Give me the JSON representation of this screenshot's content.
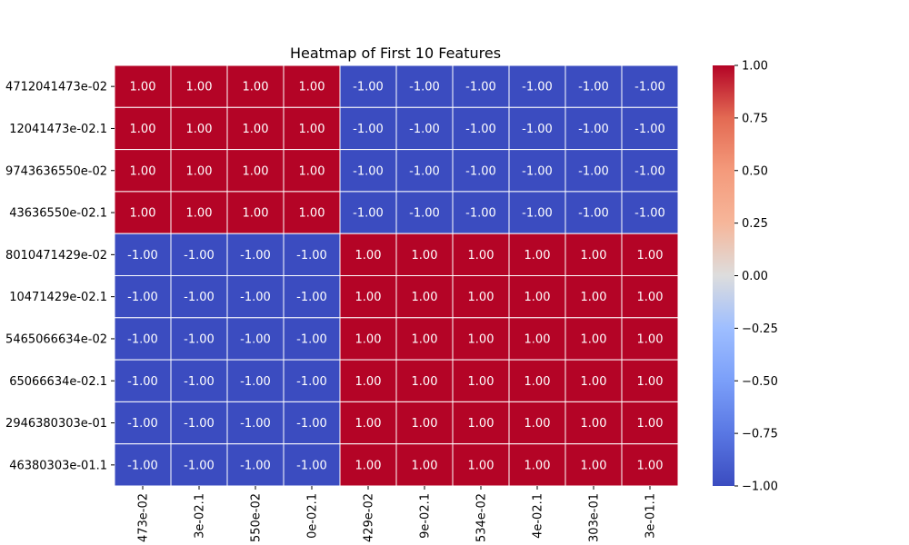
{
  "chart_data": {
    "type": "heatmap",
    "title": "Heatmap of First 10 Features",
    "row_labels": [
      "4712041473e-02",
      "12041473e-02.1",
      "9743636550e-02",
      "43636550e-02.1",
      "8010471429e-02",
      "10471429e-02.1",
      "5465066634e-02",
      "65066634e-02.1",
      "2946380303e-01",
      "46380303e-01.1"
    ],
    "column_labels": [
      "473e-02",
      "3e-02.1",
      "550e-02",
      "0e-02.1",
      "429e-02",
      "9e-02.1",
      "534e-02",
      "4e-02.1",
      "303e-01",
      "3e-01.1"
    ],
    "values": [
      [
        1,
        1,
        1,
        1,
        -1,
        -1,
        -1,
        -1,
        -1,
        -1
      ],
      [
        1,
        1,
        1,
        1,
        -1,
        -1,
        -1,
        -1,
        -1,
        -1
      ],
      [
        1,
        1,
        1,
        1,
        -1,
        -1,
        -1,
        -1,
        -1,
        -1
      ],
      [
        1,
        1,
        1,
        1,
        -1,
        -1,
        -1,
        -1,
        -1,
        -1
      ],
      [
        -1,
        -1,
        -1,
        -1,
        1,
        1,
        1,
        1,
        1,
        1
      ],
      [
        -1,
        -1,
        -1,
        -1,
        1,
        1,
        1,
        1,
        1,
        1
      ],
      [
        -1,
        -1,
        -1,
        -1,
        1,
        1,
        1,
        1,
        1,
        1
      ],
      [
        -1,
        -1,
        -1,
        -1,
        1,
        1,
        1,
        1,
        1,
        1
      ],
      [
        -1,
        -1,
        -1,
        -1,
        1,
        1,
        1,
        1,
        1,
        1
      ],
      [
        -1,
        -1,
        -1,
        -1,
        1,
        1,
        1,
        1,
        1,
        1
      ]
    ],
    "value_format": "0.00",
    "colormap": "coolwarm",
    "colorbar": {
      "min": -1.0,
      "max": 1.0,
      "ticks": [
        "−1.00",
        "−0.75",
        "−0.50",
        "−0.25",
        "0.00",
        "0.25",
        "0.50",
        "0.75",
        "1.00"
      ],
      "tick_values": [
        -1.0,
        -0.75,
        -0.5,
        -0.25,
        0.0,
        0.25,
        0.5,
        0.75,
        1.0
      ]
    },
    "colors": {
      "high": "#b40426",
      "low": "#3b4cc0",
      "mid": "#dddddd",
      "grid": "#ffffff",
      "annotation": "#ffffff"
    }
  }
}
